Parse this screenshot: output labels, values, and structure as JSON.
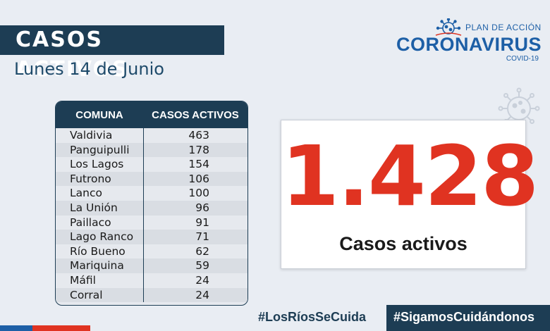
{
  "header": {
    "title": "CASOS ACTIVOS",
    "date": "Lunes 14 de Junio"
  },
  "logo": {
    "plan": "PLAN DE ACCIÓN",
    "name": "CORONAVIRUS",
    "sub": "COVID-19",
    "icon": "virus-icon"
  },
  "table": {
    "headers": [
      "COMUNA",
      "CASOS ACTIVOS"
    ],
    "rows": [
      {
        "comuna": "Valdivia",
        "casos": "463"
      },
      {
        "comuna": "Panguipulli",
        "casos": "178"
      },
      {
        "comuna": "Los Lagos",
        "casos": "154"
      },
      {
        "comuna": "Futrono",
        "casos": "106"
      },
      {
        "comuna": "Lanco",
        "casos": "100"
      },
      {
        "comuna": "La Unión",
        "casos": "96"
      },
      {
        "comuna": "Paillaco",
        "casos": "91"
      },
      {
        "comuna": "Lago Ranco",
        "casos": "71"
      },
      {
        "comuna": "Río Bueno",
        "casos": "62"
      },
      {
        "comuna": "Mariquina",
        "casos": "59"
      },
      {
        "comuna": "Máfil",
        "casos": "24"
      },
      {
        "comuna": "Corral",
        "casos": "24"
      }
    ]
  },
  "summary": {
    "total": "1.428",
    "label": "Casos activos"
  },
  "footer": {
    "hashtag1": "#LosRíosSeCuida",
    "hashtag2": "#SigamosCuidándonos"
  },
  "colors": {
    "navy": "#1d3d54",
    "blue": "#1d5fa6",
    "red": "#e03321",
    "background": "#e9edf3"
  }
}
